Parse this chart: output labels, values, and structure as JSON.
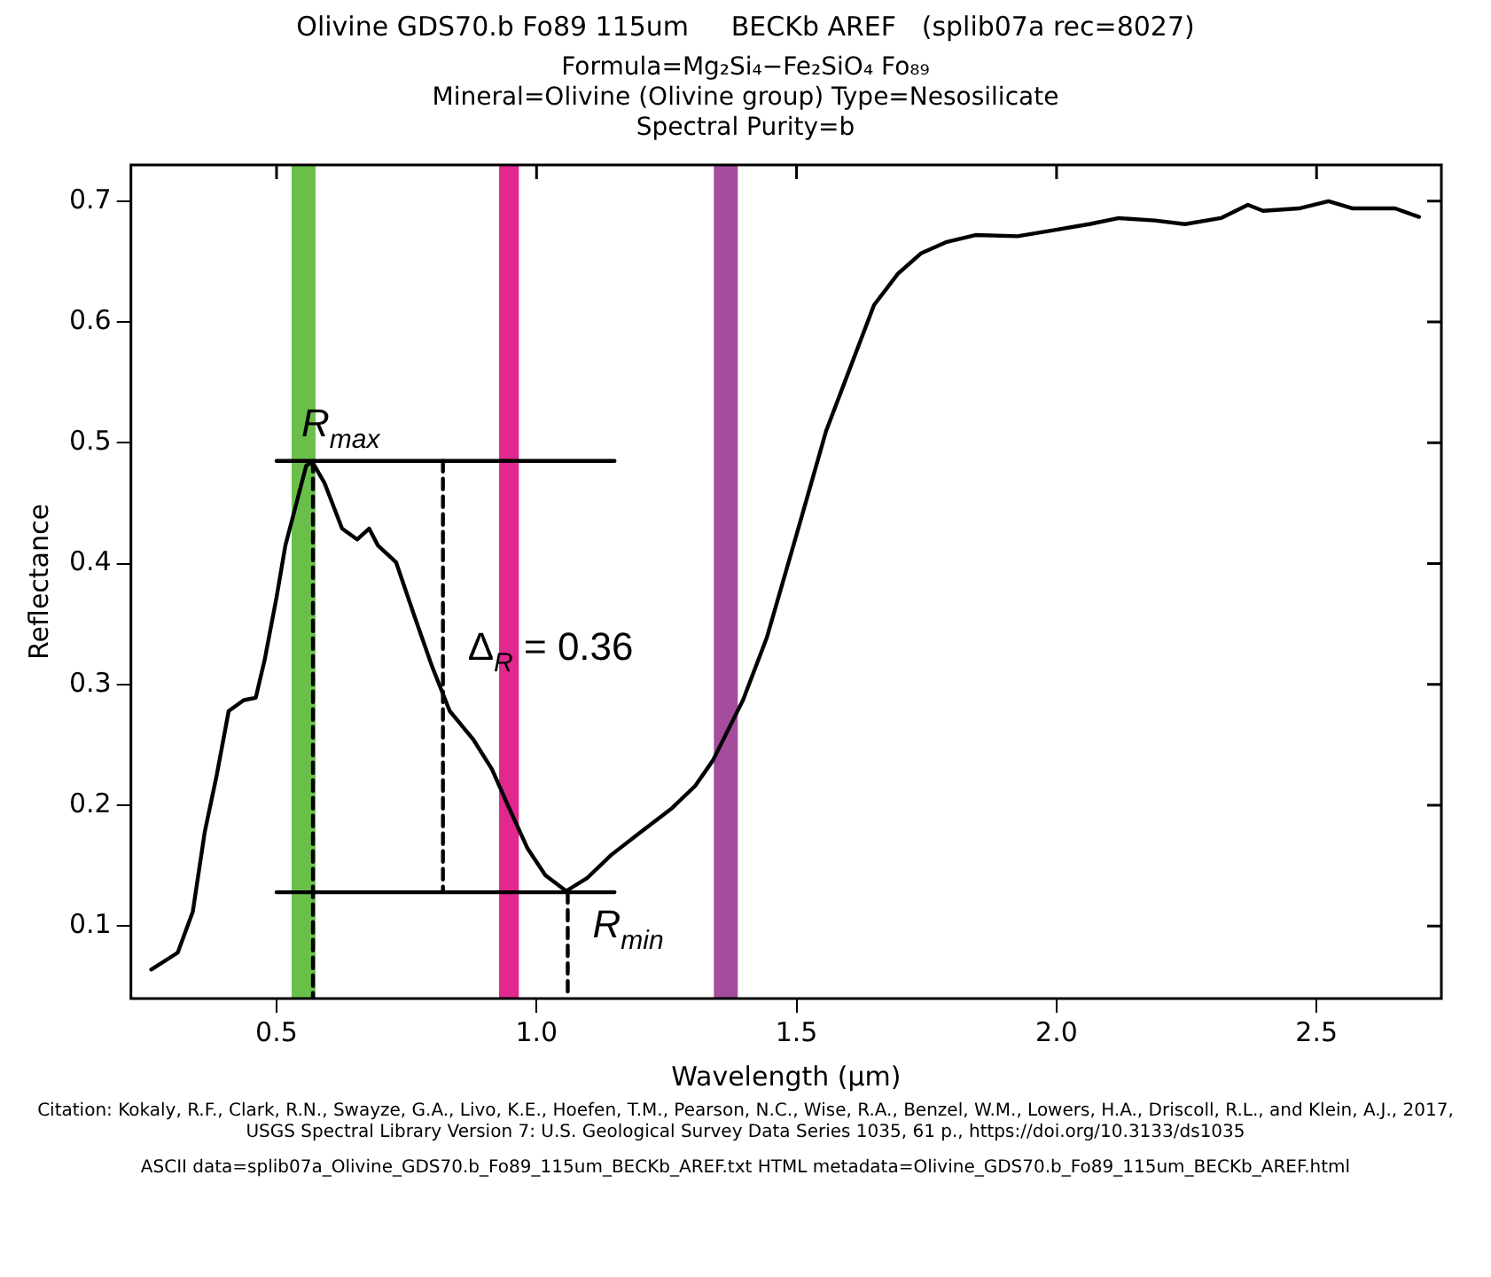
{
  "chart_data": {
    "type": "line",
    "title": "Olivine GDS70.b Fo89 115um     BECKb AREF   (splib07a rec=8027)",
    "subtitle": "Formula=Mg₂Si₄−Fe₂SiO₄ Fo₈₉\nMineral=Olivine (Olivine group)  Type=Nesosilicate\nSpectral Purity=b",
    "xlabel": "Wavelength (μm)",
    "ylabel": "Reflectance",
    "xlim": [
      0.22,
      2.74
    ],
    "xticks": [
      0.5,
      {
        "value": 1,
        "label": "1.0"
      },
      1.5,
      {
        "value": 2,
        "label": "2.0"
      },
      2.5
    ],
    "ylim": [
      0.04,
      0.73
    ],
    "yticks": [
      0.1,
      0.2,
      0.3,
      0.4,
      0.5,
      0.6,
      0.7
    ],
    "grid": false,
    "legend": false,
    "marker": "none",
    "series": [
      {
        "color": "#000000",
        "line_style": "solid",
        "x": [
          0.259,
          0.31,
          0.339,
          0.362,
          0.385,
          0.408,
          0.437,
          0.46,
          0.477,
          0.5,
          0.517,
          0.534,
          0.557,
          0.569,
          0.592,
          0.626,
          0.655,
          0.678,
          0.695,
          0.73,
          0.764,
          0.799,
          0.833,
          0.879,
          0.914,
          0.948,
          0.983,
          1.017,
          1.057,
          1.098,
          1.144,
          1.201,
          1.259,
          1.305,
          1.339,
          1.397,
          1.443,
          1.5,
          1.557,
          1.603,
          1.649,
          1.695,
          1.74,
          1.787,
          1.844,
          1.925,
          1.994,
          2.063,
          2.12,
          2.189,
          2.247,
          2.316,
          2.368,
          2.397,
          2.466,
          2.523,
          2.57,
          2.651,
          2.697
        ],
        "values": [
          0.064,
          0.078,
          0.112,
          0.178,
          0.225,
          0.278,
          0.287,
          0.289,
          0.32,
          0.372,
          0.415,
          0.443,
          0.481,
          0.484,
          0.467,
          0.429,
          0.42,
          0.429,
          0.415,
          0.401,
          0.358,
          0.315,
          0.278,
          0.254,
          0.23,
          0.197,
          0.164,
          0.142,
          0.129,
          0.14,
          0.159,
          0.178,
          0.197,
          0.216,
          0.237,
          0.287,
          0.339,
          0.424,
          0.51,
          0.562,
          0.614,
          0.64,
          0.657,
          0.666,
          0.672,
          0.671,
          0.676,
          0.681,
          0.686,
          0.684,
          0.681,
          0.686,
          0.697,
          0.692,
          0.694,
          0.7,
          0.694,
          0.694,
          0.687
        ]
      },
      {
        "color": "#000000",
        "line_style": "solid",
        "x": [
          0.5,
          1.15
        ],
        "values": [
          0.485,
          0.485
        ]
      },
      {
        "color": "#000000",
        "line_style": "solid",
        "x": [
          0.5,
          1.15
        ],
        "values": [
          0.128,
          0.128
        ]
      },
      {
        "color": "#000000",
        "line_style": "dashed",
        "x": [
          0.57,
          0.57
        ],
        "values": [
          0.485,
          0.04
        ]
      },
      {
        "color": "#000000",
        "line_style": "dashed",
        "x": [
          1.06,
          1.06
        ],
        "values": [
          0.128,
          0.04
        ]
      },
      {
        "color": "#000000",
        "line_style": "dashed",
        "x": [
          0.82,
          0.82
        ],
        "values": [
          0.485,
          0.128
        ]
      }
    ],
    "bands": [
      {
        "axis": "x",
        "from": 0.529,
        "to": 0.575,
        "color": "#6abf4b"
      },
      {
        "axis": "x",
        "from": 0.928,
        "to": 0.966,
        "color": "#e0288f"
      },
      {
        "axis": "x",
        "from": 1.341,
        "to": 1.387,
        "color": "#a54c9c"
      }
    ],
    "annotations": [
      {
        "text": "R$_{max}$",
        "x": 0.5,
        "y": 0.485
      },
      {
        "text": "Δ$_{R}$ = 0.36",
        "x": 0.82,
        "y": 0.3
      },
      {
        "text": "R$_{min}$",
        "x": 1.06,
        "y": 0.07
      },
      "Citation: Kokaly, R.F., Clark, R.N., Swayze, G.A., Livo, K.E., Hoefen, T.M., Pearson, N.C., Wise, R.A., Benzel, W.M., Lowers, H.A., Driscoll, R.L., and Klein, A.J., 2017, USGS Spectral Library Version 7: U.S. Geological Survey Data Series 1035, 61 p., https://doi.org/10.3133/ds1035",
      "ASCII data=splib07a_Olivine_GDS70.b_Fo89_115um_BECKb_AREF.txt        HTML metadata=Olivine_GDS70.b_Fo89_115um_BECKb_AREF.html"
    ]
  }
}
